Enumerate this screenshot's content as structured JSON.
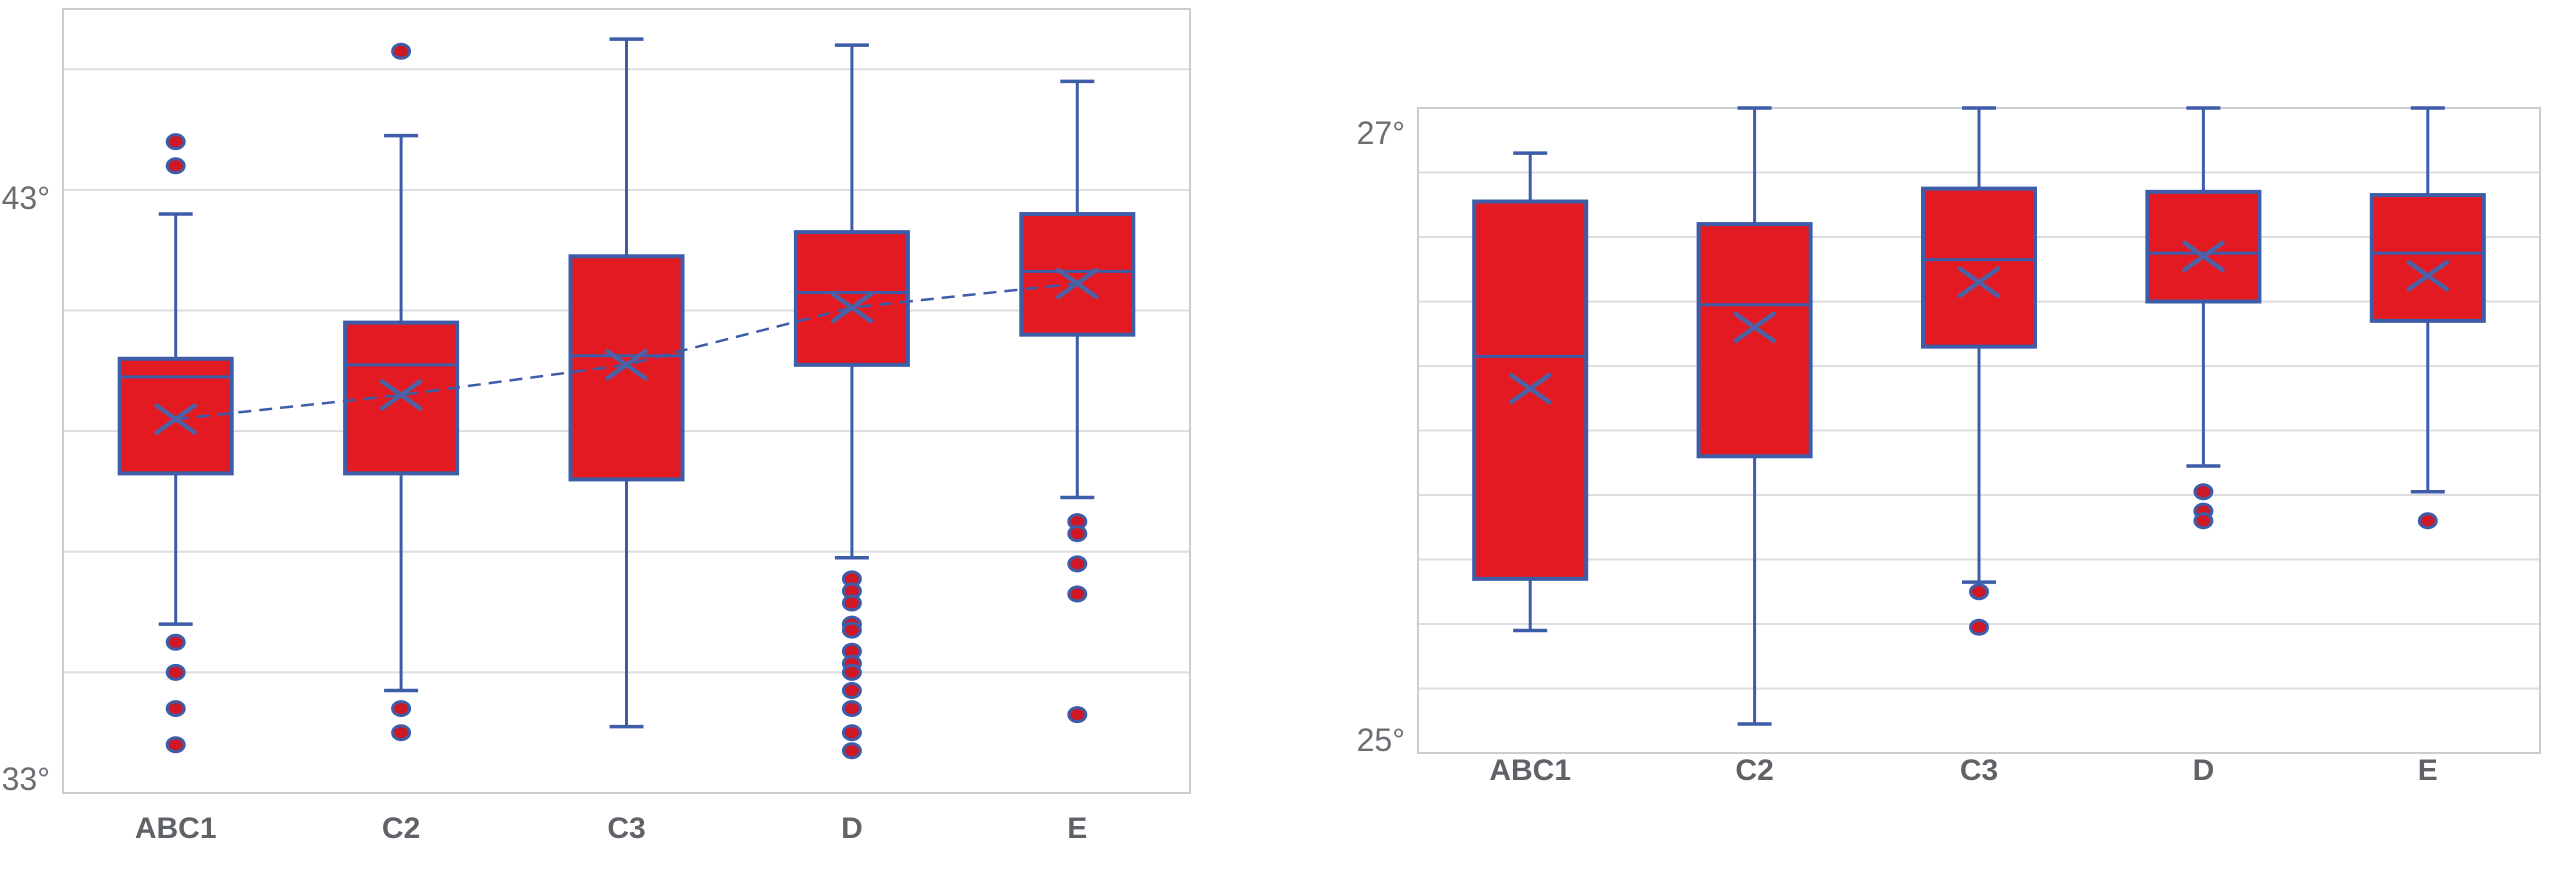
{
  "colors": {
    "background": "#ffffff",
    "box_fill": "#e31a21",
    "box_border": "#3d5da8",
    "whisker": "#3d5da8",
    "median": "#3d5da8",
    "mean_marker": "#4d62a6",
    "trendline": "#3d5da8",
    "outlier_fill": "#cf1826",
    "outlier_ring": "#3d5da8",
    "gridline": "#dddee1",
    "plot_border": "#c9ccd1",
    "axis_label": "#6a6e73",
    "category_label": "#5f6368"
  },
  "chart_data": [
    {
      "type": "boxplot",
      "title": "",
      "categories": [
        "ABC1",
        "C2",
        "C3",
        "D",
        "E"
      ],
      "y_axis": {
        "min": 33,
        "max": 46,
        "gridline_step": 2,
        "unit": "degrees",
        "tick_labels": [
          "43°",
          "33°"
        ],
        "tick_values": [
          43,
          33
        ]
      },
      "grid": true,
      "legend": false,
      "mean_trendline": true,
      "series": [
        {
          "category": "ABC1",
          "whisker_low": 35.8,
          "q1": 38.3,
          "median": 39.9,
          "q3": 40.2,
          "whisker_high": 42.6,
          "mean": 39.2,
          "outliers_high": [
            43.8,
            43.4
          ],
          "outliers_low": [
            35.5,
            35.0,
            34.4,
            33.8
          ]
        },
        {
          "category": "C2",
          "whisker_low": 34.7,
          "q1": 38.3,
          "median": 40.1,
          "q3": 40.8,
          "whisker_high": 43.9,
          "mean": 39.6,
          "outliers_high": [
            45.3
          ],
          "outliers_low": [
            34.4,
            34.0
          ]
        },
        {
          "category": "C3",
          "whisker_low": 34.1,
          "q1": 38.2,
          "median": 40.25,
          "q3": 41.9,
          "whisker_high": 45.5,
          "mean": 40.1,
          "outliers_high": [],
          "outliers_low": []
        },
        {
          "category": "D",
          "whisker_low": 36.9,
          "q1": 40.1,
          "median": 41.3,
          "q3": 42.3,
          "whisker_high": 45.4,
          "mean": 41.05,
          "outliers_high": [],
          "outliers_low": [
            36.55,
            36.35,
            36.15,
            35.8,
            35.7,
            35.35,
            35.15,
            35.0,
            34.7,
            34.4,
            34.0,
            33.7
          ]
        },
        {
          "category": "E",
          "whisker_low": 37.9,
          "q1": 40.6,
          "median": 41.65,
          "q3": 42.6,
          "whisker_high": 44.8,
          "mean": 41.45,
          "outliers_high": [],
          "outliers_low": [
            37.5,
            37.3,
            36.8,
            36.3,
            34.3
          ]
        }
      ]
    },
    {
      "type": "boxplot",
      "title": "",
      "categories": [
        "ABC1",
        "C2",
        "C3",
        "D",
        "E"
      ],
      "y_axis": {
        "min": 25,
        "max": 27,
        "gridline_step": 0.2,
        "unit": "degrees",
        "tick_labels": [
          "27°",
          "25°"
        ],
        "tick_values": [
          27,
          25
        ]
      },
      "grid": true,
      "legend": false,
      "mean_trendline": false,
      "series": [
        {
          "category": "ABC1",
          "whisker_low": 25.38,
          "q1": 25.54,
          "median": 26.23,
          "q3": 26.71,
          "whisker_high": 26.86,
          "mean": 26.13,
          "outliers_high": [],
          "outliers_low": []
        },
        {
          "category": "C2",
          "whisker_low": 25.09,
          "q1": 25.92,
          "median": 26.39,
          "q3": 26.64,
          "whisker_high": 27.0,
          "mean": 26.32,
          "outliers_high": [],
          "outliers_low": []
        },
        {
          "category": "C3",
          "whisker_low": 25.53,
          "q1": 26.26,
          "median": 26.53,
          "q3": 26.75,
          "whisker_high": 27.0,
          "mean": 26.46,
          "outliers_high": [],
          "outliers_low": [
            25.5,
            25.39
          ]
        },
        {
          "category": "D",
          "whisker_low": 25.89,
          "q1": 26.4,
          "median": 26.55,
          "q3": 26.74,
          "whisker_high": 27.0,
          "mean": 26.54,
          "outliers_high": [],
          "outliers_low": [
            25.81,
            25.75,
            25.72
          ]
        },
        {
          "category": "E",
          "whisker_low": 25.81,
          "q1": 26.34,
          "median": 26.55,
          "q3": 26.73,
          "whisker_high": 27.0,
          "mean": 26.48,
          "outliers_high": [],
          "outliers_low": [
            25.72
          ]
        }
      ]
    }
  ]
}
